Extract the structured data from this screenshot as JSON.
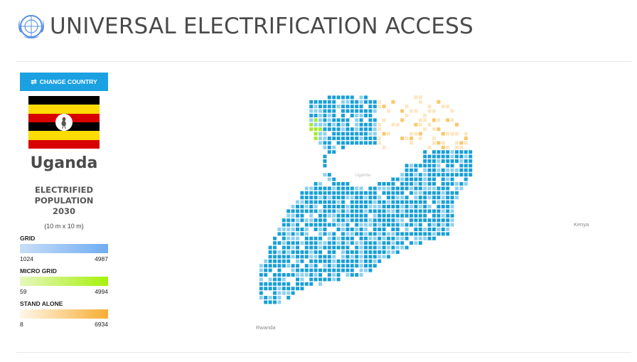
{
  "header": {
    "title": "UNIVERSAL ELECTRIFICATION ACCESS",
    "logo_icon": "un-emblem-icon"
  },
  "sidebar": {
    "change_country_label": "CHANGE COUNTRY",
    "change_icon": "swap-arrows-icon",
    "country": "Uganda",
    "metric_lines": [
      "ELECTRIFIED",
      "POPULATION",
      "2030"
    ],
    "resolution": "(10 m x 10 m)",
    "legend": [
      {
        "label": "GRID",
        "min": "1024",
        "max": "4987",
        "color_from": "#c8def7",
        "color_to": "#6fadf3"
      },
      {
        "label": "MICRO GRID",
        "min": "59",
        "max": "4994",
        "color_from": "#e6f7bd",
        "color_to": "#a6f10b"
      },
      {
        "label": "STAND ALONE",
        "min": "8",
        "max": "6934",
        "color_from": "#fff7ea",
        "color_to": "#f7ae32"
      }
    ]
  },
  "map": {
    "labels": [
      "Kenya",
      "Rwanda",
      "Uganda"
    ],
    "colors": {
      "grid": "#1a9fd6",
      "grid_light": "#8fd0ee",
      "micro": "#a7ea2f",
      "stand": "#f8c86a"
    }
  },
  "flag": {
    "colors": [
      "#000000",
      "#fcdc04",
      "#d90000"
    ]
  }
}
